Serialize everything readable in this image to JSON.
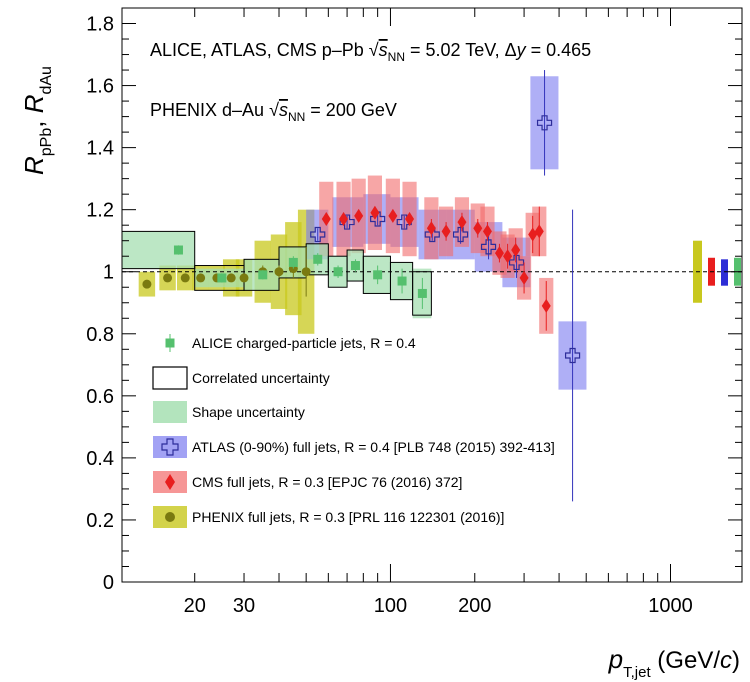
{
  "chart_data": {
    "type": "scatter",
    "xlabel": "p_T,jet (GeV/c)",
    "ylabel": "R_pPb, R_dAu",
    "x_scale": "log",
    "xlim": [
      11,
      1800
    ],
    "ylim": [
      0,
      1.85
    ],
    "x_tick_labels": [
      {
        "value": 20,
        "label": "20"
      },
      {
        "value": 30,
        "label": "30"
      },
      {
        "value": 100,
        "label": "100"
      },
      {
        "value": 200,
        "label": "200"
      },
      {
        "value": 1000,
        "label": "1000"
      }
    ],
    "y_tick_labels": [
      {
        "value": 0,
        "label": "0"
      },
      {
        "value": 0.2,
        "label": "0.2"
      },
      {
        "value": 0.4,
        "label": "0.4"
      },
      {
        "value": 0.6,
        "label": "0.6"
      },
      {
        "value": 0.8,
        "label": "0.8"
      },
      {
        "value": 1.0,
        "label": "1"
      },
      {
        "value": 1.2,
        "label": "1.2"
      },
      {
        "value": 1.4,
        "label": "1.4"
      },
      {
        "value": 1.6,
        "label": "1.6"
      },
      {
        "value": 1.8,
        "label": "1.8"
      }
    ],
    "reference_line": 1.0,
    "annotations": [
      {
        "text": "ALICE, ATLAS, CMS p–Pb √s_NN = 5.02 TeV, Δy = 0.465"
      },
      {
        "text": "PHENIX d–Au √s_NN = 200 GeV"
      }
    ],
    "series": [
      {
        "name": "ALICE charged-particle jets, R = 0.4",
        "color": "#55c06e",
        "marker": "square",
        "points": [
          {
            "x": 17.5,
            "xlo": 11,
            "xhi": 20,
            "y": 1.07,
            "stat": 0.015,
            "corr": 0.06,
            "shape": 0.06
          },
          {
            "x": 25,
            "xlo": 20,
            "xhi": 30,
            "y": 0.98,
            "stat": 0.015,
            "corr": 0.04,
            "shape": 0.03
          },
          {
            "x": 35,
            "xlo": 30,
            "xhi": 40,
            "y": 0.99,
            "stat": 0.015,
            "corr": 0.05,
            "shape": 0.05
          },
          {
            "x": 45,
            "xlo": 40,
            "xhi": 50,
            "y": 1.03,
            "stat": 0.02,
            "corr": 0.05,
            "shape": 0.05
          },
          {
            "x": 55,
            "xlo": 50,
            "xhi": 60,
            "y": 1.04,
            "stat": 0.02,
            "corr": 0.05,
            "shape": 0.05
          },
          {
            "x": 65,
            "xlo": 60,
            "xhi": 70,
            "y": 1.0,
            "stat": 0.02,
            "corr": 0.05,
            "shape": 0.05
          },
          {
            "x": 75,
            "xlo": 70,
            "xhi": 80,
            "y": 1.02,
            "stat": 0.02,
            "corr": 0.05,
            "shape": 0.05
          },
          {
            "x": 90,
            "xlo": 80,
            "xhi": 100,
            "y": 0.99,
            "stat": 0.03,
            "corr": 0.06,
            "shape": 0.06
          },
          {
            "x": 110,
            "xlo": 100,
            "xhi": 120,
            "y": 0.97,
            "stat": 0.04,
            "corr": 0.06,
            "shape": 0.06
          },
          {
            "x": 130,
            "xlo": 120,
            "xhi": 140,
            "y": 0.93,
            "stat": 0.05,
            "corr": 0.07,
            "shape": 0.08
          }
        ]
      },
      {
        "name": "ATLAS (0-90%) full jets, R = 0.4",
        "color": "#5555e6",
        "marker": "open-cross",
        "points": [
          {
            "x": 55,
            "xlo": 50,
            "xhi": 60,
            "y": 1.12,
            "stat": 0.02,
            "sys": 0.08
          },
          {
            "x": 70,
            "xlo": 62,
            "xhi": 80,
            "y": 1.16,
            "stat": 0.02,
            "sys": 0.08
          },
          {
            "x": 90,
            "xlo": 80,
            "xhi": 100,
            "y": 1.17,
            "stat": 0.02,
            "sys": 0.08
          },
          {
            "x": 112,
            "xlo": 100,
            "xhi": 126,
            "y": 1.16,
            "stat": 0.02,
            "sys": 0.08
          },
          {
            "x": 141,
            "xlo": 126,
            "xhi": 158,
            "y": 1.12,
            "stat": 0.02,
            "sys": 0.08
          },
          {
            "x": 178,
            "xlo": 158,
            "xhi": 200,
            "y": 1.12,
            "stat": 0.03,
            "sys": 0.08
          },
          {
            "x": 224,
            "xlo": 200,
            "xhi": 251,
            "y": 1.08,
            "stat": 0.04,
            "sys": 0.08
          },
          {
            "x": 282,
            "xlo": 251,
            "xhi": 316,
            "y": 1.03,
            "stat": 0.05,
            "sys": 0.08
          },
          {
            "x": 355,
            "xlo": 316,
            "xhi": 398,
            "y": 1.48,
            "stat": 0.17,
            "sys": 0.15
          },
          {
            "x": 447,
            "xlo": 398,
            "xhi": 501,
            "y": 0.73,
            "stat": 0.47,
            "sys": 0.11
          }
        ]
      },
      {
        "name": "CMS full jets, R = 0.3",
        "color": "#e81e1e",
        "marker": "diamond",
        "points": [
          {
            "x": 59,
            "y": 1.17,
            "stat": 0.02,
            "sys": 0.12
          },
          {
            "x": 68,
            "y": 1.17,
            "stat": 0.02,
            "sys": 0.12
          },
          {
            "x": 77,
            "y": 1.18,
            "stat": 0.02,
            "sys": 0.12
          },
          {
            "x": 88,
            "y": 1.19,
            "stat": 0.02,
            "sys": 0.12
          },
          {
            "x": 102,
            "y": 1.18,
            "stat": 0.02,
            "sys": 0.12
          },
          {
            "x": 117,
            "y": 1.17,
            "stat": 0.02,
            "sys": 0.12
          },
          {
            "x": 140,
            "y": 1.14,
            "stat": 0.03,
            "sys": 0.1
          },
          {
            "x": 158,
            "y": 1.13,
            "stat": 0.03,
            "sys": 0.08
          },
          {
            "x": 180,
            "y": 1.16,
            "stat": 0.03,
            "sys": 0.08
          },
          {
            "x": 205,
            "y": 1.14,
            "stat": 0.03,
            "sys": 0.08
          },
          {
            "x": 222,
            "y": 1.13,
            "stat": 0.03,
            "sys": 0.08
          },
          {
            "x": 245,
            "y": 1.06,
            "stat": 0.03,
            "sys": 0.07
          },
          {
            "x": 262,
            "y": 1.05,
            "stat": 0.04,
            "sys": 0.07
          },
          {
            "x": 280,
            "y": 1.07,
            "stat": 0.04,
            "sys": 0.07
          },
          {
            "x": 300,
            "y": 0.98,
            "stat": 0.05,
            "sys": 0.07
          },
          {
            "x": 322,
            "y": 1.12,
            "stat": 0.06,
            "sys": 0.07
          },
          {
            "x": 340,
            "y": 1.13,
            "stat": 0.08,
            "sys": 0.08
          },
          {
            "x": 360,
            "y": 0.89,
            "stat": 0.08,
            "sys": 0.09
          }
        ]
      },
      {
        "name": "PHENIX full jets, R = 0.3",
        "color": "#c8c81e",
        "marker": "circle",
        "points": [
          {
            "x": 13.5,
            "y": 0.96,
            "stat": 0.01,
            "sys": 0.04
          },
          {
            "x": 16,
            "y": 0.98,
            "stat": 0.01,
            "sys": 0.04
          },
          {
            "x": 18.5,
            "y": 0.98,
            "stat": 0.01,
            "sys": 0.04
          },
          {
            "x": 21,
            "y": 0.98,
            "stat": 0.01,
            "sys": 0.04
          },
          {
            "x": 24,
            "y": 0.98,
            "stat": 0.01,
            "sys": 0.04
          },
          {
            "x": 27,
            "y": 0.98,
            "stat": 0.01,
            "sys": 0.06
          },
          {
            "x": 30,
            "y": 0.98,
            "stat": 0.01,
            "sys": 0.06
          },
          {
            "x": 35,
            "y": 1.0,
            "stat": 0.02,
            "sys": 0.1
          },
          {
            "x": 40,
            "y": 1.0,
            "stat": 0.02,
            "sys": 0.12
          },
          {
            "x": 45,
            "y": 1.01,
            "stat": 0.03,
            "sys": 0.15
          },
          {
            "x": 50,
            "y": 1.0,
            "stat": 0.08,
            "sys": 0.2
          }
        ]
      }
    ],
    "normalization_boxes": [
      {
        "series": "PHENIX full jets, R = 0.3",
        "lo": 0.9,
        "hi": 1.1,
        "color": "#c8c81e"
      },
      {
        "series": "CMS full jets, R = 0.3",
        "lo": 0.955,
        "hi": 1.045,
        "color": "#e81e1e"
      },
      {
        "series": "ATLAS (0-90%) full jets, R = 0.4",
        "lo": 0.955,
        "hi": 1.04,
        "color": "#2d2dd6"
      },
      {
        "series": "ALICE charged-particle jets, R = 0.4",
        "lo": 0.955,
        "hi": 1.045,
        "color": "#55c06e"
      }
    ],
    "legend": {
      "placement": "bottom-left",
      "entries": [
        {
          "text": "ALICE charged-particle jets,  R = 0.4",
          "symbol": "alice"
        },
        {
          "text": "Correlated uncertainty",
          "symbol": "corr-box"
        },
        {
          "text": "Shape uncertainty",
          "symbol": "shape-box"
        },
        {
          "text": "ATLAS (0-90%) full jets,  R = 0.4  [PLB 748 (2015) 392-413]",
          "symbol": "atlas"
        },
        {
          "text": "CMS full jets,  R = 0.3  [EPJC 76 (2016) 372]",
          "symbol": "cms"
        },
        {
          "text": "PHENIX full jets,  R = 0.3  [PRL 116 122301 (2016)]",
          "symbol": "phenix"
        }
      ]
    },
    "grid": false
  }
}
